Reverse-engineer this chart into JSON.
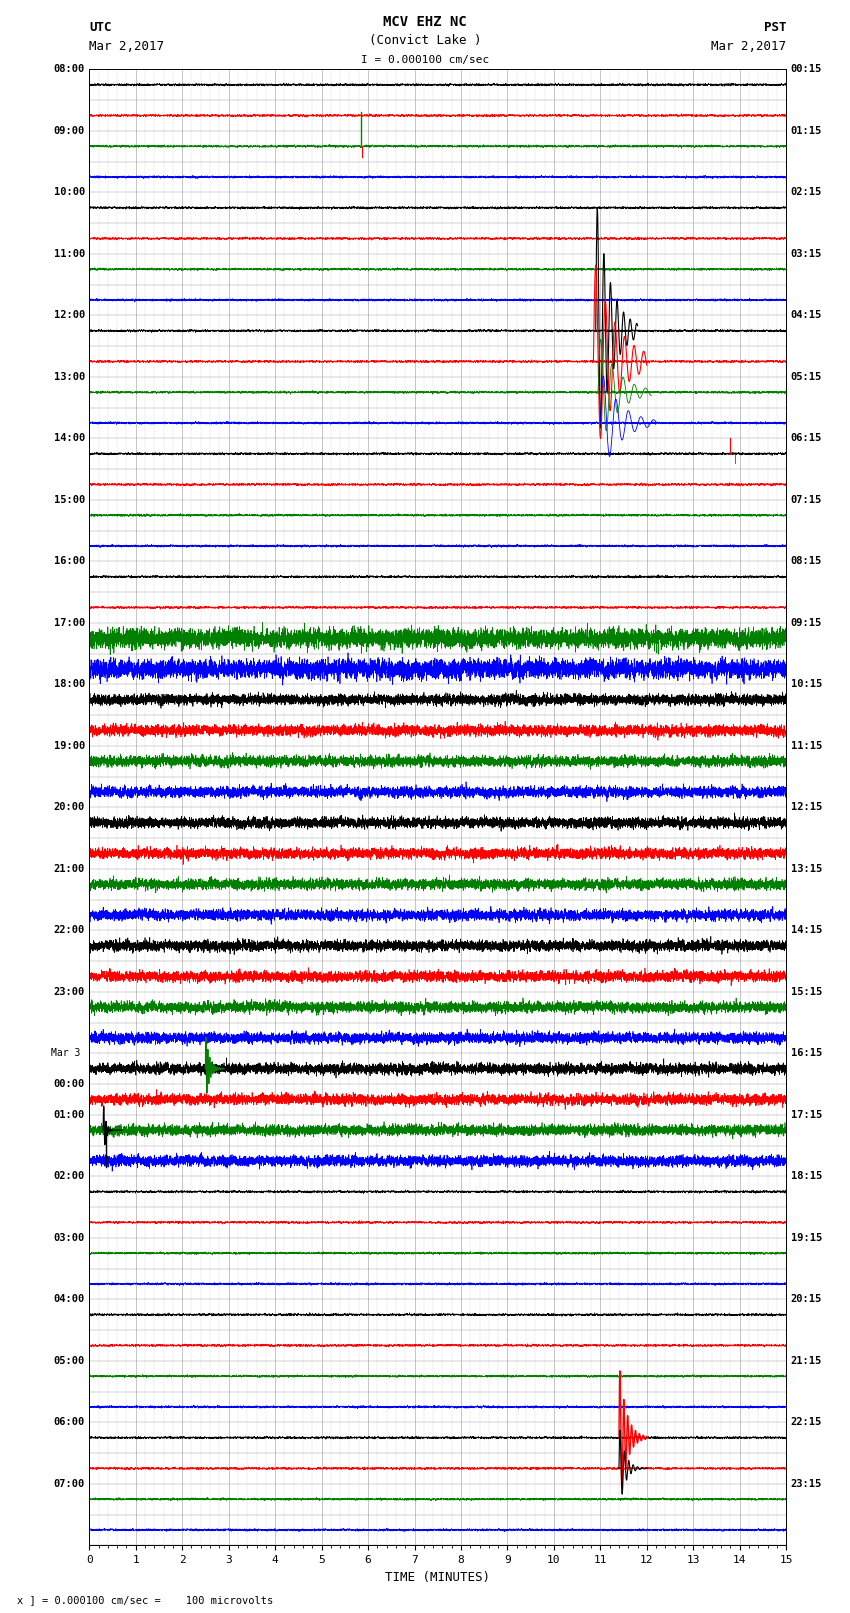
{
  "title_line1": "MCV EHZ NC",
  "title_line2": "(Convict Lake )",
  "scale_label": "I = 0.000100 cm/sec",
  "left_label1": "UTC",
  "left_label2": "Mar 2,2017",
  "right_label1": "PST",
  "right_label2": "Mar 2,2017",
  "xlabel": "TIME (MINUTES)",
  "footer": "x ] = 0.000100 cm/sec =    100 microvolts",
  "xlim": [
    0,
    15
  ],
  "xticks": [
    0,
    1,
    2,
    3,
    4,
    5,
    6,
    7,
    8,
    9,
    10,
    11,
    12,
    13,
    14,
    15
  ],
  "num_traces": 48,
  "background_color": "#ffffff",
  "grid_color": "#aaaaaa",
  "utc_times": [
    "08:00",
    "",
    "09:00",
    "",
    "10:00",
    "",
    "11:00",
    "",
    "12:00",
    "",
    "13:00",
    "",
    "14:00",
    "",
    "15:00",
    "",
    "16:00",
    "",
    "17:00",
    "",
    "18:00",
    "",
    "19:00",
    "",
    "20:00",
    "",
    "21:00",
    "",
    "22:00",
    "",
    "23:00",
    "",
    "Mar 3",
    "00:00",
    "01:00",
    "",
    "02:00",
    "",
    "03:00",
    "",
    "04:00",
    "",
    "05:00",
    "",
    "06:00",
    "",
    "07:00",
    ""
  ],
  "pst_times": [
    "00:15",
    "",
    "01:15",
    "",
    "02:15",
    "",
    "03:15",
    "",
    "04:15",
    "",
    "05:15",
    "",
    "06:15",
    "",
    "07:15",
    "",
    "08:15",
    "",
    "09:15",
    "",
    "10:15",
    "",
    "11:15",
    "",
    "12:15",
    "",
    "13:15",
    "",
    "14:15",
    "",
    "15:15",
    "",
    "16:15",
    "",
    "17:15",
    "",
    "18:15",
    "",
    "19:15",
    "",
    "20:15",
    "",
    "21:15",
    "",
    "22:15",
    "",
    "23:15",
    ""
  ],
  "trace_colors_pattern": [
    "black",
    "red",
    "green",
    "blue"
  ],
  "noise_amplitudes": [
    0.025,
    0.025,
    0.025,
    0.025,
    0.025,
    0.025,
    0.025,
    0.025,
    0.025,
    0.025,
    0.025,
    0.025,
    0.025,
    0.025,
    0.025,
    0.025,
    0.025,
    0.025,
    0.22,
    0.22,
    0.12,
    0.12,
    0.12,
    0.12,
    0.12,
    0.12,
    0.12,
    0.12,
    0.12,
    0.12,
    0.12,
    0.12,
    0.12,
    0.12,
    0.12,
    0.12,
    0.025,
    0.025,
    0.025,
    0.025,
    0.025,
    0.025,
    0.025,
    0.025,
    0.025,
    0.025,
    0.025,
    0.025
  ]
}
